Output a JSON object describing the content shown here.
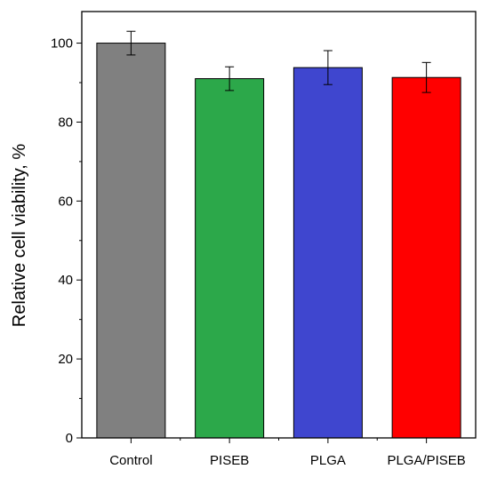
{
  "chart_data": {
    "type": "bar",
    "title": "",
    "xlabel": "",
    "ylabel": "Relative cell viability, %",
    "categories": [
      "Control",
      "PISEB",
      "PLGA",
      "PLGA/PISEB"
    ],
    "values": [
      100,
      91,
      93.8,
      91.3
    ],
    "errors": [
      3,
      3,
      4.3,
      3.8
    ],
    "colors": [
      "#808080",
      "#2ca84a",
      "#3f46cf",
      "#ff0000"
    ],
    "ylim": [
      0,
      108
    ],
    "yticks": [
      0,
      20,
      40,
      60,
      80,
      100
    ],
    "grid": false,
    "legend": "none"
  }
}
